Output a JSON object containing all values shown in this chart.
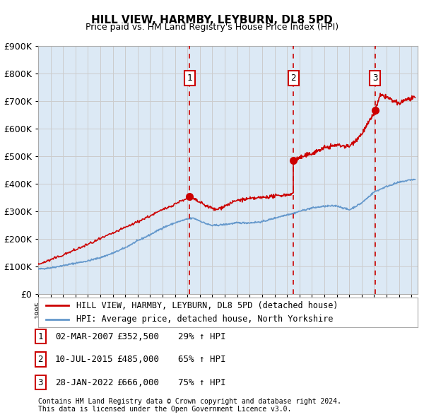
{
  "title": "HILL VIEW, HARMBY, LEYBURN, DL8 5PD",
  "subtitle": "Price paid vs. HM Land Registry's House Price Index (HPI)",
  "xlabel": "",
  "ylabel": "",
  "background_color": "#ffffff",
  "plot_bg_color": "#dce9f5",
  "grid_color": "#cccccc",
  "red_line_color": "#cc0000",
  "blue_line_color": "#6699cc",
  "transaction_marker_color": "#cc0000",
  "dashed_line_color": "#cc0000",
  "ylim": [
    0,
    900000
  ],
  "ytick_labels": [
    "£0",
    "£100K",
    "£200K",
    "£300K",
    "£400K",
    "£500K",
    "£600K",
    "£700K",
    "£800K",
    "£900K"
  ],
  "ytick_values": [
    0,
    100000,
    200000,
    300000,
    400000,
    500000,
    600000,
    700000,
    800000,
    900000
  ],
  "xlim_start": 1995.0,
  "xlim_end": 2025.5,
  "transactions": [
    {
      "label": "1",
      "date_num": 2007.16,
      "price": 352500
    },
    {
      "label": "2",
      "date_num": 2015.52,
      "price": 485000
    },
    {
      "label": "3",
      "date_num": 2022.07,
      "price": 666000
    }
  ],
  "transaction_table": [
    {
      "num": "1",
      "date": "02-MAR-2007",
      "price": "£352,500",
      "hpi": "29% ↑ HPI"
    },
    {
      "num": "2",
      "date": "10-JUL-2015",
      "price": "£485,000",
      "hpi": "65% ↑ HPI"
    },
    {
      "num": "3",
      "date": "28-JAN-2022",
      "price": "£666,000",
      "hpi": "75% ↑ HPI"
    }
  ],
  "legend_line1": "HILL VIEW, HARMBY, LEYBURN, DL8 5PD (detached house)",
  "legend_line2": "HPI: Average price, detached house, North Yorkshire",
  "footer1": "Contains HM Land Registry data © Crown copyright and database right 2024.",
  "footer2": "This data is licensed under the Open Government Licence v3.0.",
  "shaded_region_start": 2007.16,
  "shaded_region_end": 2025.5
}
